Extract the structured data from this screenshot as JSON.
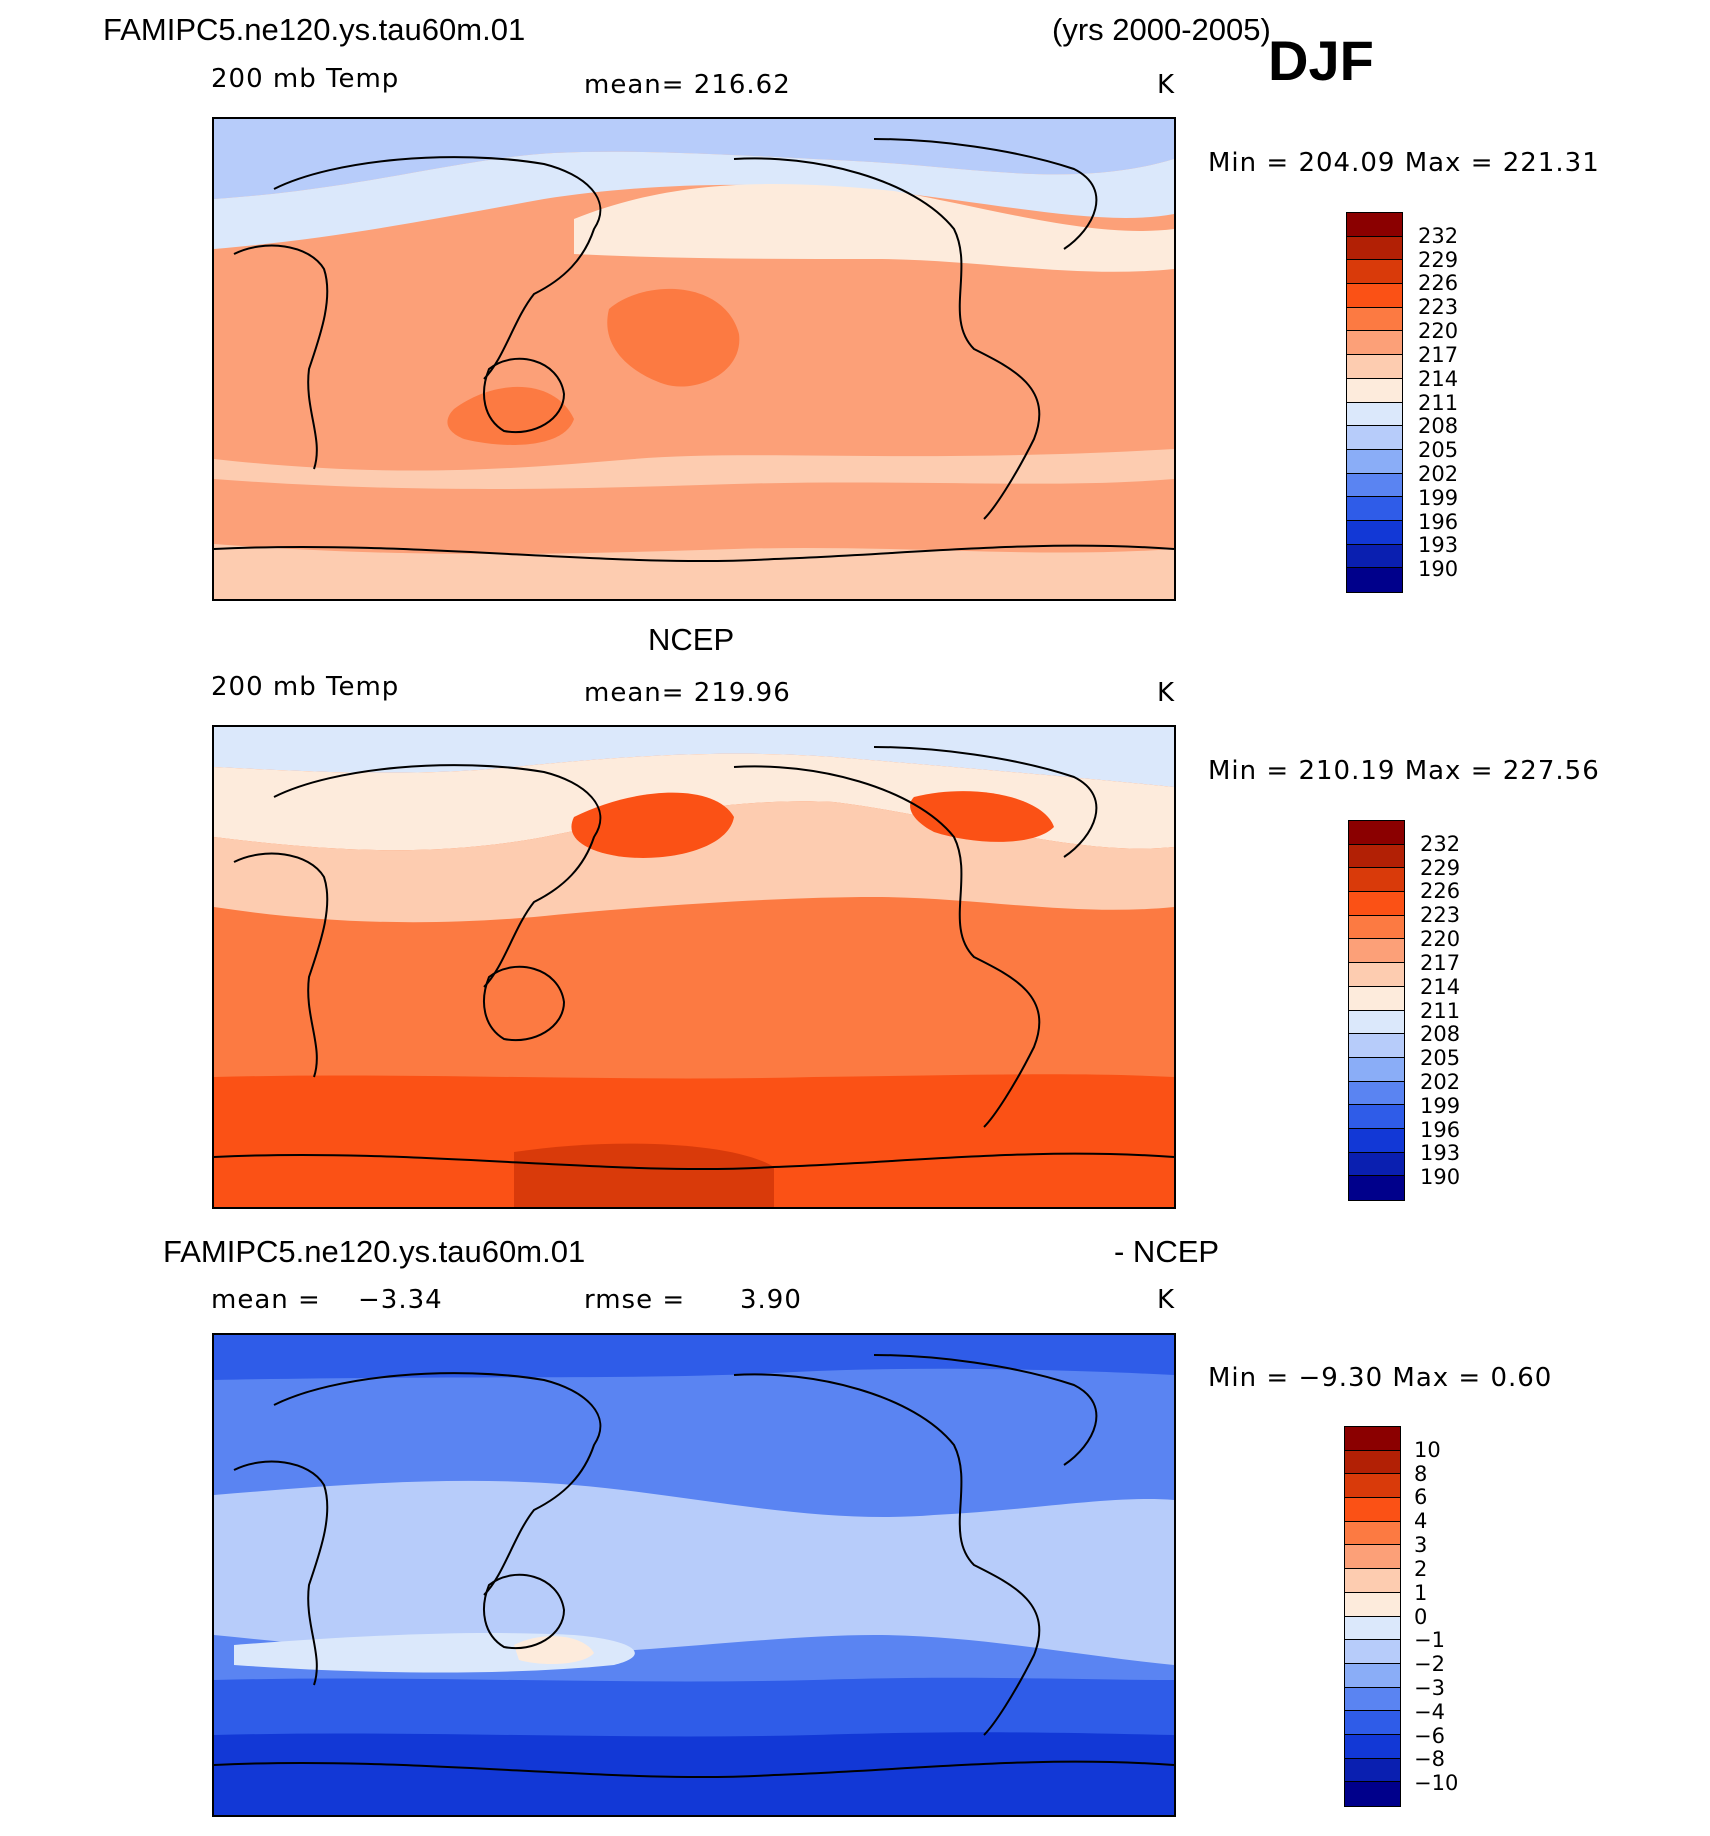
{
  "header": {
    "case_name": "FAMIPC5.ne120.ys.tau60m.01",
    "years": "(yrs 2000-2005)",
    "season": "DJF"
  },
  "panels": [
    {
      "id": "model",
      "title": "",
      "variable": "200 mb Temp",
      "stat_text": "mean=  216.62",
      "units": "K",
      "minmax": "Min  =  204.09  Max  =  221.31",
      "colorbar": {
        "levels": [
          "232",
          "229",
          "226",
          "223",
          "220",
          "217",
          "214",
          "211",
          "208",
          "205",
          "202",
          "199",
          "196",
          "193",
          "190"
        ],
        "colors": [
          "#8b0000",
          "#b22005",
          "#d93a0a",
          "#fb5115",
          "#fc7a42",
          "#fca078",
          "#fdccb0",
          "#fdebdc",
          "#dbe8fb",
          "#b7ccfa",
          "#8aadf7",
          "#5a84f2",
          "#2f5ce8",
          "#1238d6",
          "#0a1fb0",
          "#00008b"
        ]
      },
      "fields": {
        "base": "#fca078",
        "north_band_low": "#b7ccfa",
        "north_band_mid": "#dbe8fb",
        "north_band_high": "#fdebdc",
        "maxima": "#fc7a42",
        "south": "#fdccb0"
      }
    },
    {
      "id": "obs",
      "title": "NCEP",
      "variable": "200 mb Temp",
      "stat_text": "mean=  219.96",
      "units": "K",
      "minmax": "Min  =  210.19  Max  =  227.56",
      "colorbar": {
        "levels": [
          "232",
          "229",
          "226",
          "223",
          "220",
          "217",
          "214",
          "211",
          "208",
          "205",
          "202",
          "199",
          "196",
          "193",
          "190"
        ],
        "colors": [
          "#8b0000",
          "#b22005",
          "#d93a0a",
          "#fb5115",
          "#fc7a42",
          "#fca078",
          "#fdccb0",
          "#fdebdc",
          "#dbe8fb",
          "#b7ccfa",
          "#8aadf7",
          "#5a84f2",
          "#2f5ce8",
          "#1238d6",
          "#0a1fb0",
          "#00008b"
        ]
      },
      "fields": {
        "base": "#fc7a42",
        "north_band_low": "#dbe8fb",
        "north_band_mid": "#fdebdc",
        "north_band_high": "#fdccb0",
        "maxima": "#fb5115",
        "south": "#d93a0a"
      }
    },
    {
      "id": "diff",
      "title_left": "FAMIPC5.ne120.ys.tau60m.01",
      "title_right": "- NCEP",
      "mean_label": "mean  =",
      "mean_value": "−3.34",
      "rmse_label": "rmse  =",
      "rmse_value": "3.90",
      "units": "K",
      "minmax": "Min  =    −9.30  Max  =     0.60",
      "colorbar": {
        "levels": [
          "10",
          "8",
          "6",
          "4",
          "3",
          "2",
          "1",
          "0",
          "−1",
          "−2",
          "−3",
          "−4",
          "−6",
          "−8",
          "−10"
        ],
        "colors": [
          "#8b0000",
          "#b22005",
          "#d93a0a",
          "#fb5115",
          "#fc7a42",
          "#fca078",
          "#fdccb0",
          "#fdebdc",
          "#dbe8fb",
          "#b7ccfa",
          "#8aadf7",
          "#5a84f2",
          "#2f5ce8",
          "#1238d6",
          "#0a1fb0",
          "#00008b"
        ]
      },
      "fields": {
        "base": "#5a84f2",
        "north_band_low": "#2f5ce8",
        "north_band_mid": "#5a84f2",
        "tropics": "#b7ccfa",
        "tropics_light": "#dbe8fb",
        "warm_spot": "#fdebdc",
        "south": "#2f5ce8",
        "south_deep": "#1238d6"
      }
    }
  ]
}
